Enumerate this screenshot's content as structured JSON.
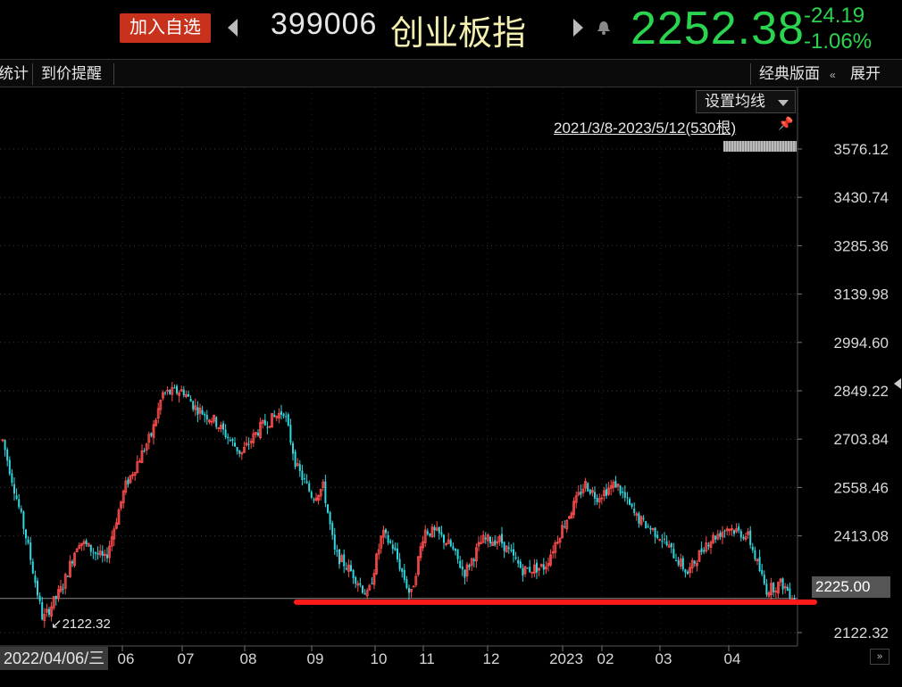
{
  "header": {
    "add_label": "加入自选",
    "code": "399006",
    "name": "创业板指",
    "price": "2252.38",
    "change": "-24.19",
    "change_pct": "-1.06%",
    "colors": {
      "price": "#2bd44f",
      "add_button": "#c8321d",
      "name": "#f3efb0"
    },
    "icons": [
      "prev-triangle-icon",
      "next-triangle-icon",
      "bell-icon"
    ]
  },
  "toolbar": {
    "left_tabs": [
      "统计",
      "到价提醒"
    ],
    "right_tabs": [
      "经典版面",
      "展开"
    ]
  },
  "chart_data": {
    "type": "candlestick",
    "ma_button": "设置均线",
    "range_label": "2021/3/8-2023/5/12(530根)",
    "y_ticks": [
      "3576.12",
      "3430.74",
      "3285.36",
      "3139.98",
      "2994.60",
      "2849.22",
      "2703.84",
      "2558.46",
      "2413.08",
      "2225.00",
      "2122.32"
    ],
    "ylim": [
      2122.32,
      3576.12
    ],
    "x_ticks": [
      "2022/04/06/三",
      "06",
      "07",
      "08",
      "09",
      "10",
      "11",
      "12",
      "2023",
      "02",
      "03",
      "04"
    ],
    "current_value": "2225.00",
    "low_marker": "2122.32",
    "support_line": {
      "value": 2214,
      "color": "#ff1a1a"
    },
    "up_color": "#ff4d4d",
    "down_color": "#2fd8e0",
    "path": [
      [
        3,
        2700
      ],
      [
        30,
        2400
      ],
      [
        48,
        2160
      ],
      [
        70,
        2260
      ],
      [
        88,
        2400
      ],
      [
        118,
        2340
      ],
      [
        140,
        2560
      ],
      [
        170,
        2720
      ],
      [
        182,
        2840
      ],
      [
        205,
        2850
      ],
      [
        218,
        2800
      ],
      [
        240,
        2760
      ],
      [
        270,
        2660
      ],
      [
        292,
        2740
      ],
      [
        318,
        2790
      ],
      [
        332,
        2620
      ],
      [
        350,
        2530
      ],
      [
        362,
        2560
      ],
      [
        375,
        2360
      ],
      [
        395,
        2300
      ],
      [
        412,
        2230
      ],
      [
        428,
        2420
      ],
      [
        440,
        2380
      ],
      [
        460,
        2230
      ],
      [
        475,
        2430
      ],
      [
        490,
        2420
      ],
      [
        505,
        2380
      ],
      [
        520,
        2300
      ],
      [
        540,
        2400
      ],
      [
        560,
        2400
      ],
      [
        585,
        2310
      ],
      [
        610,
        2320
      ],
      [
        630,
        2440
      ],
      [
        655,
        2570
      ],
      [
        668,
        2530
      ],
      [
        690,
        2570
      ],
      [
        712,
        2470
      ],
      [
        740,
        2410
      ],
      [
        770,
        2300
      ],
      [
        790,
        2390
      ],
      [
        815,
        2440
      ],
      [
        838,
        2410
      ],
      [
        858,
        2250
      ],
      [
        875,
        2270
      ],
      [
        890,
        2225
      ]
    ]
  }
}
